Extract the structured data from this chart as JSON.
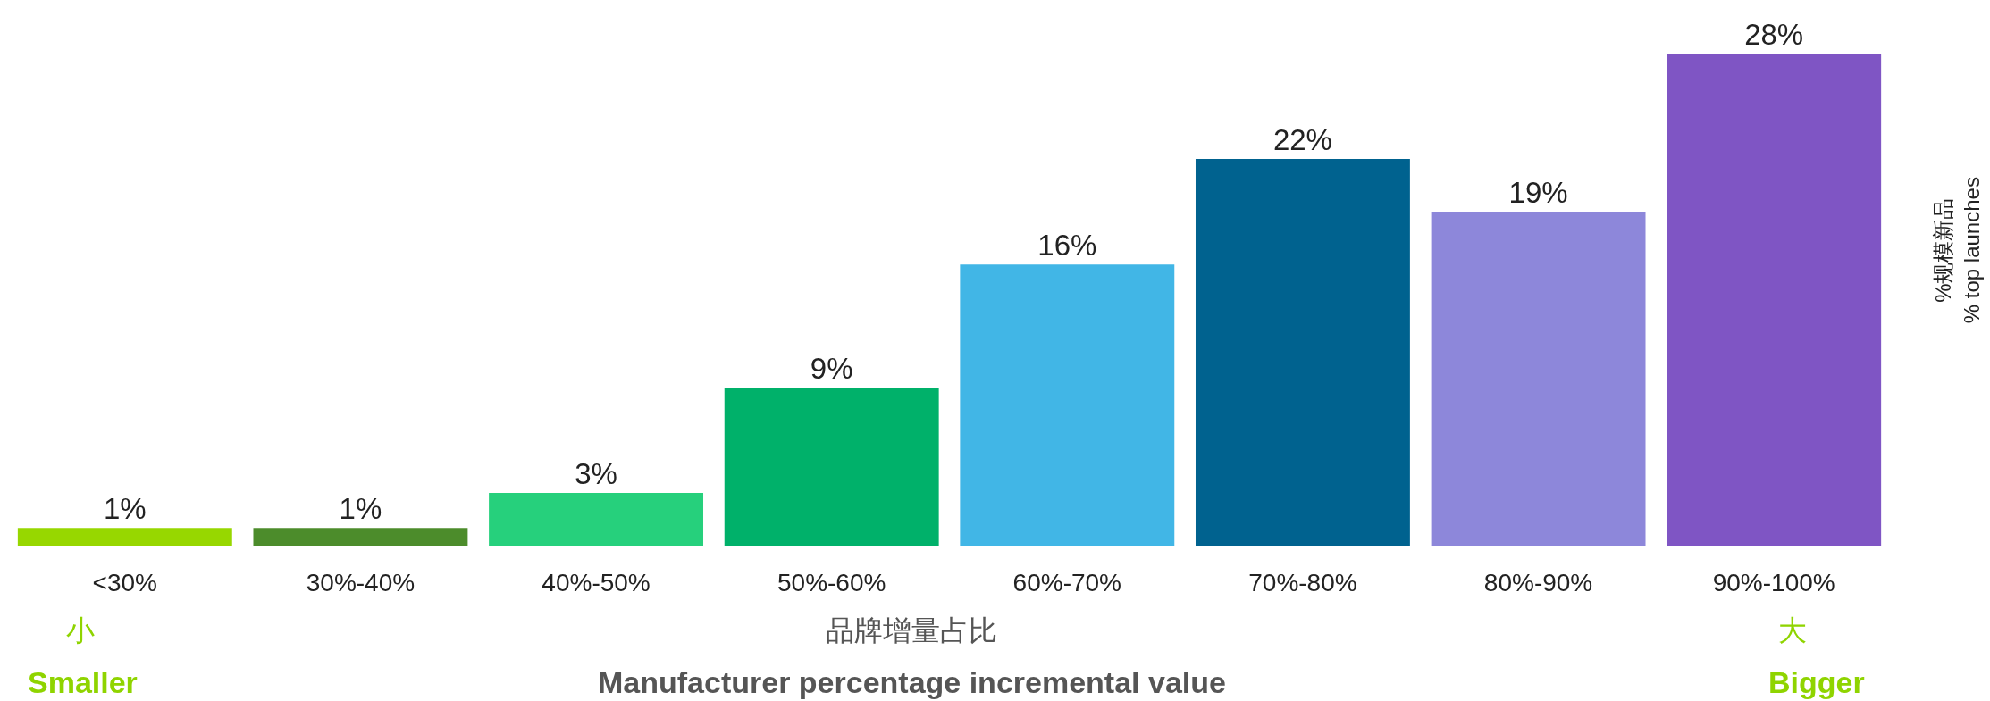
{
  "chart_data": {
    "type": "bar",
    "categories": [
      "<30%",
      "30%-40%",
      "40%-50%",
      "50%-60%",
      "60%-70%",
      "70%-80%",
      "80%-90%",
      "90%-100%"
    ],
    "values": [
      1,
      1,
      3,
      9,
      16,
      22,
      19,
      28
    ],
    "value_labels": [
      "1%",
      "1%",
      "3%",
      "9%",
      "16%",
      "22%",
      "19%",
      "28%"
    ],
    "colors": [
      "#97d700",
      "#4c8c2b",
      "#26d07c",
      "#00b16a",
      "#41b6e6",
      "#00628f",
      "#8d87da",
      "#7f55c4"
    ],
    "xlabel": "品牌增量占比\nManufacturer percentage incremental value",
    "ylabel": "%规模新品\n% top launches",
    "annotations": [
      "小",
      "Smaller",
      "大",
      "Bigger"
    ]
  }
}
